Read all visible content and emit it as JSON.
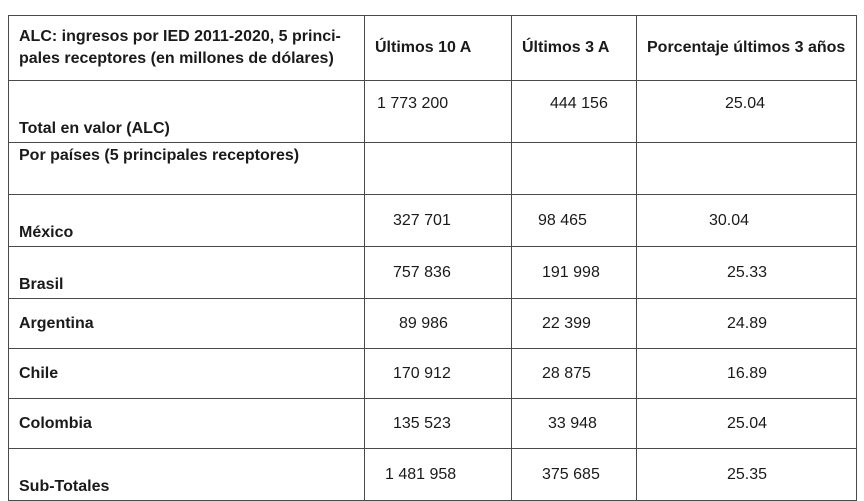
{
  "header": {
    "title_line1": "ALC: ingresos por IED 2011-2020, 5 princi-",
    "title_line2": "pales receptores (en millones de dólares)",
    "col_last10": "Últimos 10 A",
    "col_last3": "Últimos 3 A",
    "col_pct": "Porcentaje últimos 3 años"
  },
  "total": {
    "label": "Total en valor (ALC)",
    "last10": "1 773 200",
    "last3": "444 156",
    "pct": "25.04"
  },
  "section_label": "Por países (5 principales receptores)",
  "countries": [
    {
      "name": "México",
      "last10": "327 701",
      "last3": "98 465",
      "pct": "30.04"
    },
    {
      "name": "Brasil",
      "last10": "757 836",
      "last3": "191 998",
      "pct": "25.33"
    },
    {
      "name": "Argentina",
      "last10": "89 986",
      "last3": "22 399",
      "pct": "24.89"
    },
    {
      "name": "Chile",
      "last10": "170 912",
      "last3": "28 875",
      "pct": "16.89"
    },
    {
      "name": "Colombia",
      "last10": "135 523",
      "last3": "33 948",
      "pct": "25.04"
    }
  ],
  "subtotal": {
    "label": "Sub-Totales",
    "last10": "1 481 958",
    "last3": "375 685",
    "pct": "25.35"
  }
}
